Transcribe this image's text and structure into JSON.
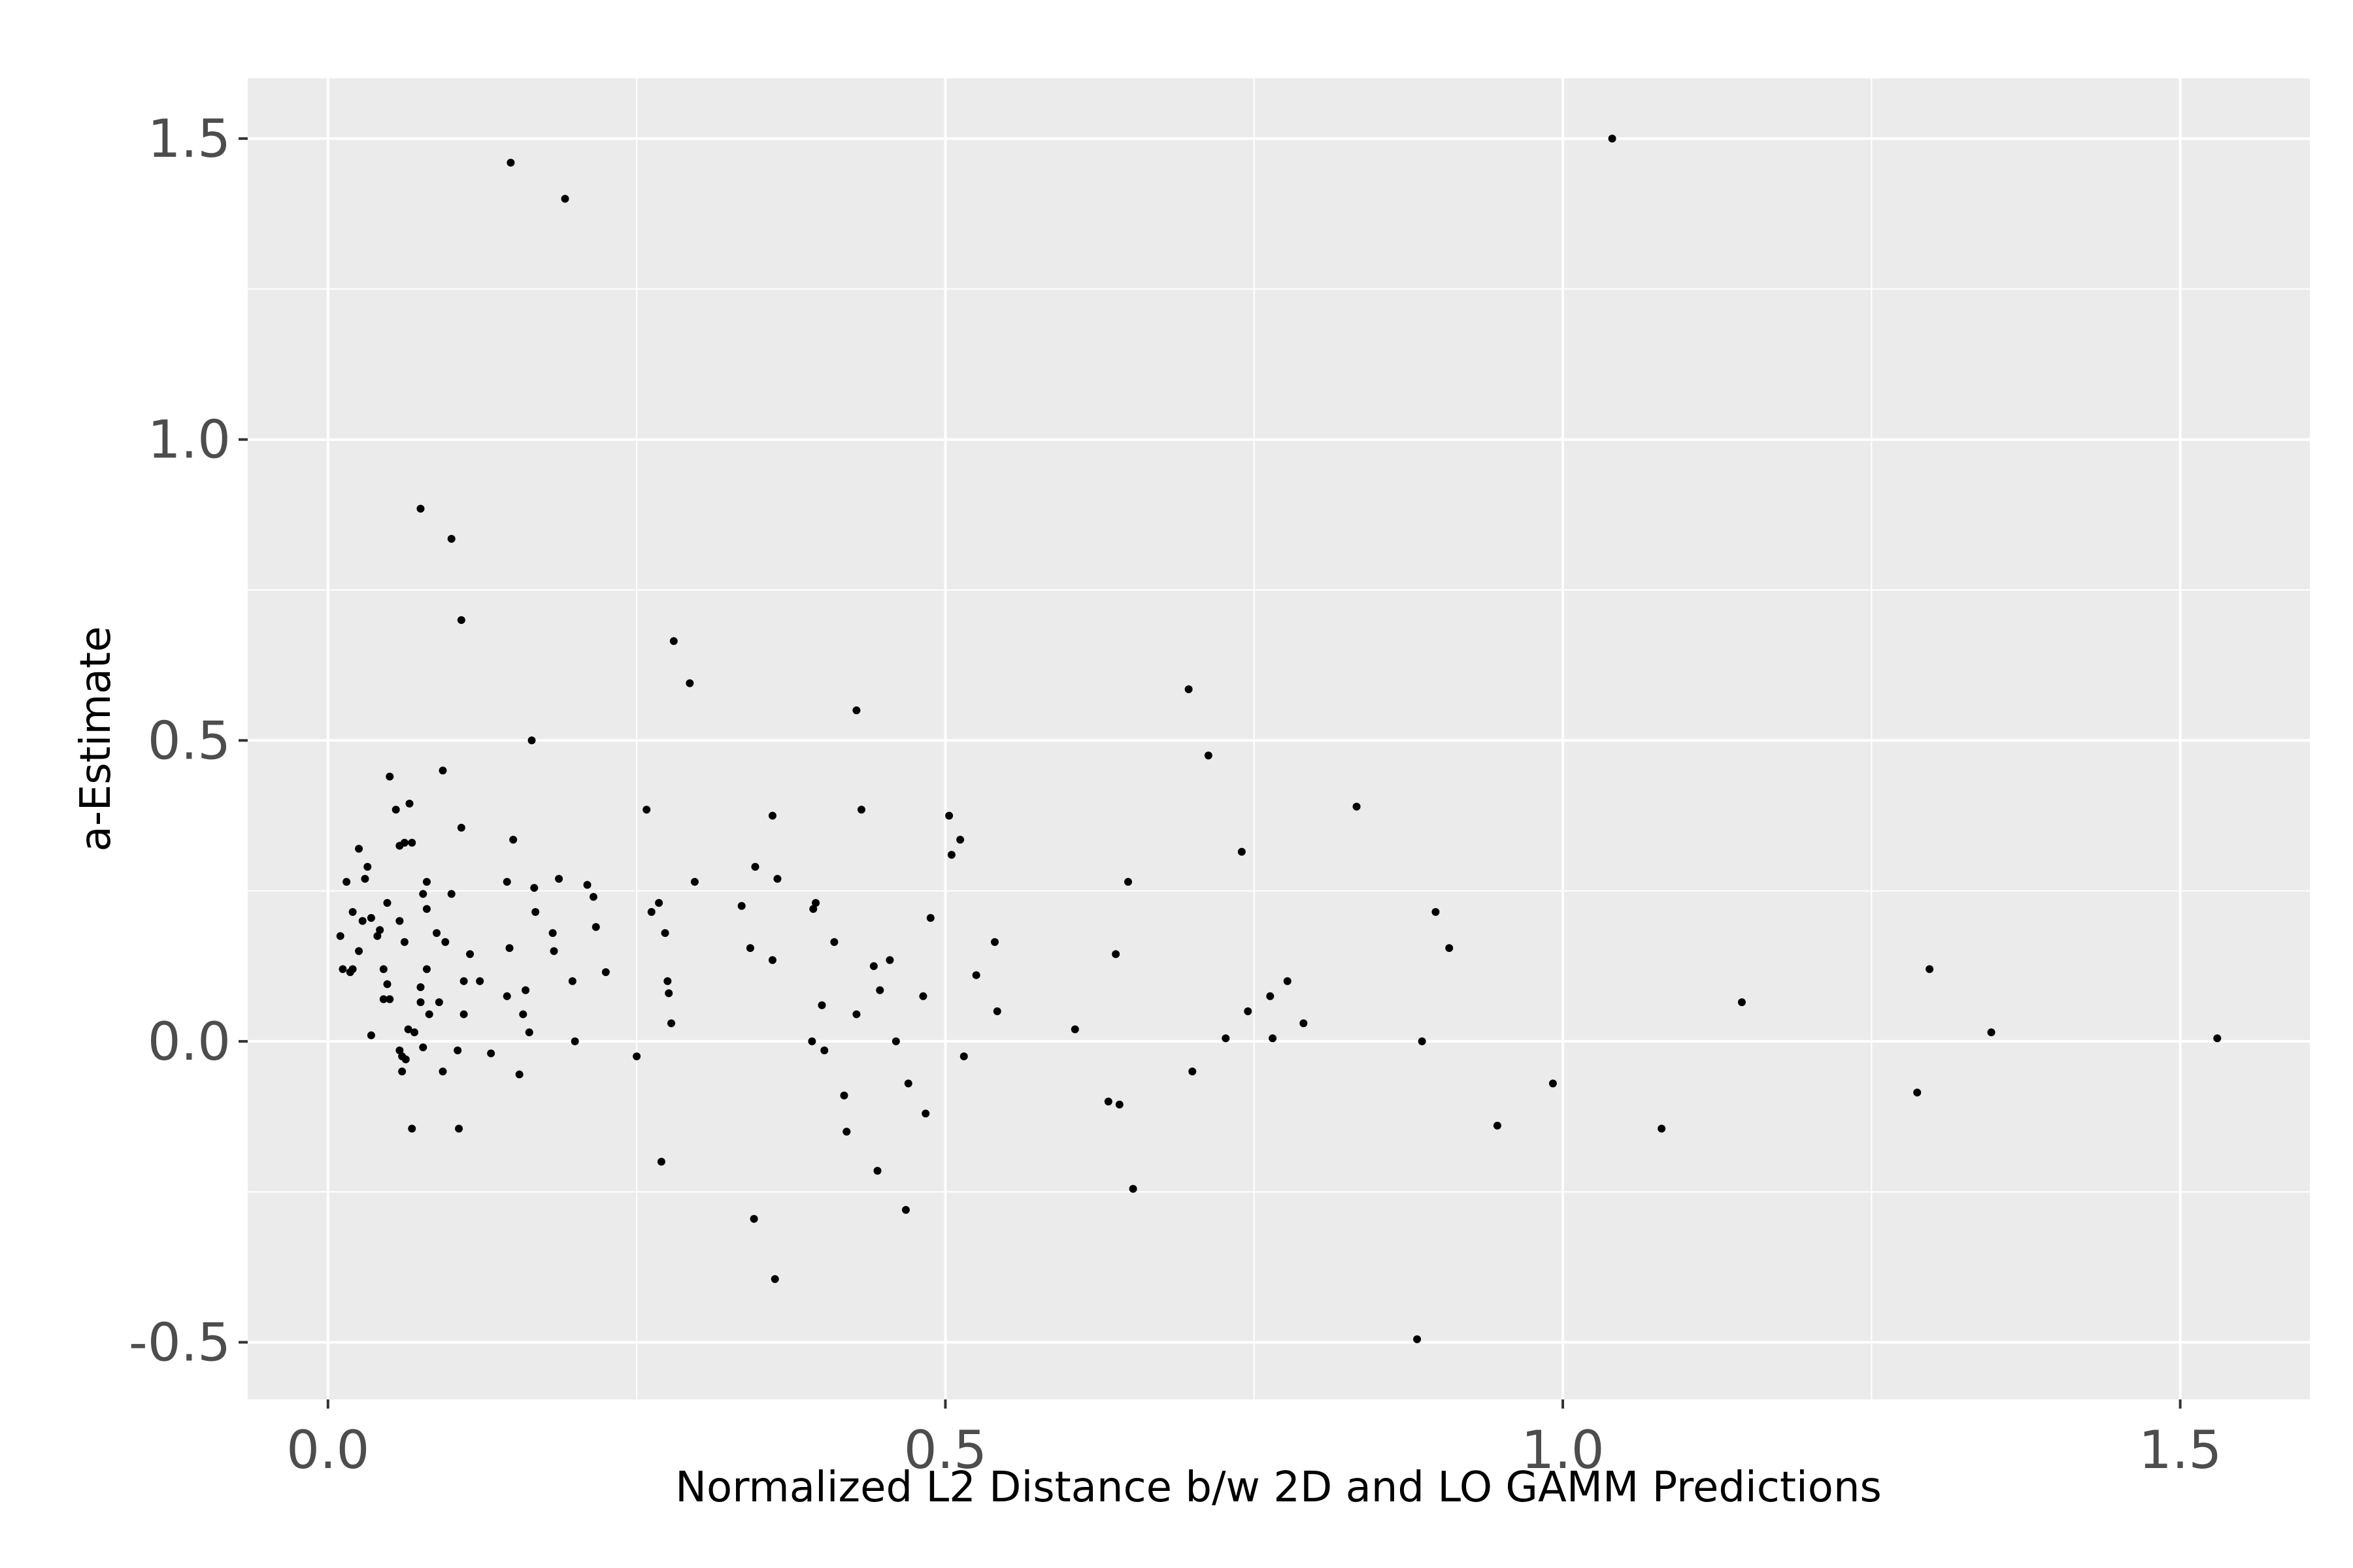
{
  "chart_data": {
    "type": "scatter",
    "title": "",
    "xlabel": "Normalized L2 Distance b/w 2D and LO GAMM Predictions",
    "ylabel": "a-Estimate",
    "xlim": [
      -0.065,
      1.605
    ],
    "ylim": [
      -0.595,
      1.6
    ],
    "x_ticks": [
      0.0,
      0.5,
      1.0,
      1.5
    ],
    "x_tick_labels": [
      "0.0",
      "0.5",
      "1.0",
      "1.5"
    ],
    "y_ticks": [
      -0.5,
      0.0,
      0.5,
      1.0,
      1.5
    ],
    "y_tick_labels": [
      "-0.5",
      "0.0",
      "0.5",
      "1.0",
      "1.5"
    ],
    "grid": true,
    "legend": "none",
    "colors": {
      "panel": "#ebebeb",
      "grid": "#ffffff",
      "point": "#000000"
    },
    "points": [
      [
        0.01,
        0.175
      ],
      [
        0.012,
        0.12
      ],
      [
        0.015,
        0.265
      ],
      [
        0.018,
        0.115
      ],
      [
        0.02,
        0.215
      ],
      [
        0.02,
        0.12
      ],
      [
        0.025,
        0.32
      ],
      [
        0.025,
        0.15
      ],
      [
        0.028,
        0.2
      ],
      [
        0.03,
        0.27
      ],
      [
        0.032,
        0.29
      ],
      [
        0.035,
        0.01
      ],
      [
        0.035,
        0.205
      ],
      [
        0.04,
        0.175
      ],
      [
        0.042,
        0.185
      ],
      [
        0.045,
        0.12
      ],
      [
        0.045,
        0.07
      ],
      [
        0.048,
        0.23
      ],
      [
        0.048,
        0.095
      ],
      [
        0.05,
        0.07
      ],
      [
        0.05,
        0.44
      ],
      [
        0.055,
        0.385
      ],
      [
        0.058,
        0.325
      ],
      [
        0.058,
        0.2
      ],
      [
        0.058,
        -0.015
      ],
      [
        0.06,
        -0.05
      ],
      [
        0.06,
        -0.025
      ],
      [
        0.062,
        0.33
      ],
      [
        0.062,
        0.165
      ],
      [
        0.063,
        -0.03
      ],
      [
        0.065,
        0.02
      ],
      [
        0.066,
        0.395
      ],
      [
        0.068,
        0.33
      ],
      [
        0.068,
        -0.145
      ],
      [
        0.07,
        0.015
      ],
      [
        0.075,
        0.09
      ],
      [
        0.075,
        0.065
      ],
      [
        0.075,
        0.885
      ],
      [
        0.077,
        -0.01
      ],
      [
        0.077,
        0.245
      ],
      [
        0.08,
        0.265
      ],
      [
        0.08,
        0.22
      ],
      [
        0.08,
        0.12
      ],
      [
        0.082,
        0.045
      ],
      [
        0.088,
        0.18
      ],
      [
        0.09,
        0.065
      ],
      [
        0.093,
        0.45
      ],
      [
        0.093,
        -0.05
      ],
      [
        0.095,
        0.165
      ],
      [
        0.1,
        0.835
      ],
      [
        0.1,
        0.245
      ],
      [
        0.105,
        -0.015
      ],
      [
        0.106,
        -0.145
      ],
      [
        0.108,
        0.7
      ],
      [
        0.108,
        0.355
      ],
      [
        0.11,
        0.1
      ],
      [
        0.11,
        0.045
      ],
      [
        0.115,
        0.145
      ],
      [
        0.123,
        0.1
      ],
      [
        0.132,
        -0.02
      ],
      [
        0.145,
        0.265
      ],
      [
        0.145,
        0.075
      ],
      [
        0.147,
        0.155
      ],
      [
        0.148,
        1.46
      ],
      [
        0.15,
        0.335
      ],
      [
        0.155,
        -0.055
      ],
      [
        0.158,
        0.045
      ],
      [
        0.16,
        0.085
      ],
      [
        0.163,
        0.015
      ],
      [
        0.165,
        0.5
      ],
      [
        0.167,
        0.255
      ],
      [
        0.168,
        0.215
      ],
      [
        0.182,
        0.18
      ],
      [
        0.183,
        0.15
      ],
      [
        0.187,
        0.27
      ],
      [
        0.192,
        1.4
      ],
      [
        0.198,
        0.1
      ],
      [
        0.2,
        0.0
      ],
      [
        0.21,
        0.26
      ],
      [
        0.215,
        0.24
      ],
      [
        0.217,
        0.19
      ],
      [
        0.225,
        0.115
      ],
      [
        0.25,
        -0.025
      ],
      [
        0.258,
        0.385
      ],
      [
        0.262,
        0.215
      ],
      [
        0.268,
        0.23
      ],
      [
        0.27,
        -0.2
      ],
      [
        0.273,
        0.18
      ],
      [
        0.275,
        0.1
      ],
      [
        0.276,
        0.08
      ],
      [
        0.278,
        0.03
      ],
      [
        0.28,
        0.665
      ],
      [
        0.293,
        0.595
      ],
      [
        0.297,
        0.265
      ],
      [
        0.335,
        0.225
      ],
      [
        0.342,
        0.155
      ],
      [
        0.345,
        -0.295
      ],
      [
        0.346,
        0.29
      ],
      [
        0.36,
        0.375
      ],
      [
        0.36,
        0.135
      ],
      [
        0.362,
        -0.395
      ],
      [
        0.364,
        0.27
      ],
      [
        0.392,
        0.0
      ],
      [
        0.393,
        0.22
      ],
      [
        0.395,
        0.23
      ],
      [
        0.4,
        0.06
      ],
      [
        0.402,
        -0.015
      ],
      [
        0.41,
        0.165
      ],
      [
        0.418,
        -0.09
      ],
      [
        0.42,
        -0.15
      ],
      [
        0.428,
        0.55
      ],
      [
        0.428,
        0.045
      ],
      [
        0.432,
        0.385
      ],
      [
        0.442,
        0.125
      ],
      [
        0.445,
        -0.215
      ],
      [
        0.447,
        0.085
      ],
      [
        0.455,
        0.135
      ],
      [
        0.46,
        0.0
      ],
      [
        0.468,
        -0.28
      ],
      [
        0.47,
        -0.07
      ],
      [
        0.482,
        0.075
      ],
      [
        0.484,
        -0.12
      ],
      [
        0.488,
        0.205
      ],
      [
        0.503,
        0.375
      ],
      [
        0.505,
        0.31
      ],
      [
        0.512,
        0.335
      ],
      [
        0.515,
        -0.025
      ],
      [
        0.525,
        0.11
      ],
      [
        0.54,
        0.165
      ],
      [
        0.542,
        0.05
      ],
      [
        0.605,
        0.02
      ],
      [
        0.632,
        -0.1
      ],
      [
        0.638,
        0.145
      ],
      [
        0.641,
        -0.105
      ],
      [
        0.648,
        0.265
      ],
      [
        0.652,
        -0.245
      ],
      [
        0.697,
        0.585
      ],
      [
        0.7,
        -0.05
      ],
      [
        0.713,
        0.475
      ],
      [
        0.727,
        0.005
      ],
      [
        0.74,
        0.315
      ],
      [
        0.745,
        0.05
      ],
      [
        0.763,
        0.075
      ],
      [
        0.765,
        0.005
      ],
      [
        0.777,
        0.1
      ],
      [
        0.79,
        0.03
      ],
      [
        0.833,
        0.39
      ],
      [
        0.882,
        -0.495
      ],
      [
        0.886,
        0.0
      ],
      [
        0.897,
        0.215
      ],
      [
        0.908,
        0.155
      ],
      [
        0.947,
        -0.14
      ],
      [
        0.992,
        -0.07
      ],
      [
        1.04,
        1.5
      ],
      [
        1.08,
        -0.145
      ],
      [
        1.145,
        0.065
      ],
      [
        1.287,
        -0.085
      ],
      [
        1.297,
        0.12
      ],
      [
        1.347,
        0.015
      ],
      [
        1.53,
        0.005
      ]
    ]
  }
}
